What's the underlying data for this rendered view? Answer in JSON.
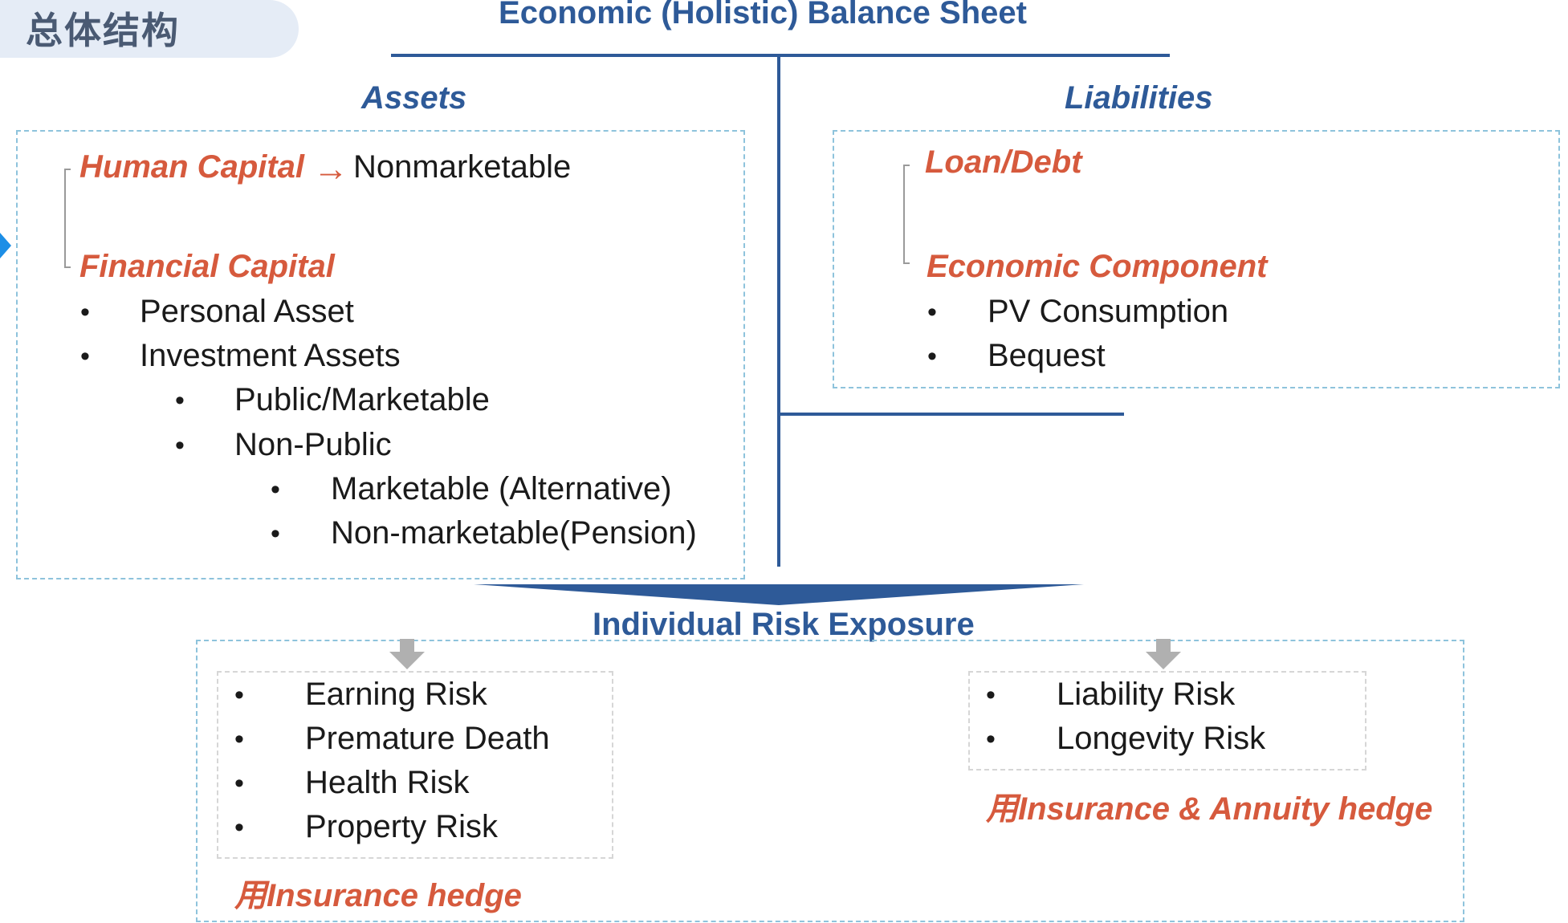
{
  "badge": {
    "text": "总体结构"
  },
  "title": "Economic (Holistic) Balance Sheet",
  "assets": {
    "header": "Assets",
    "human_capital": "Human Capital",
    "arrow": "→",
    "nonmarketable": "Nonmarketable",
    "financial_capital": "Financial Capital",
    "items": [
      {
        "label": "Personal Asset",
        "level": 1
      },
      {
        "label": "Investment Assets",
        "level": 1
      },
      {
        "label": "Public/Marketable",
        "level": 2
      },
      {
        "label": "Non-Public",
        "level": 2
      },
      {
        "label": "Marketable (Alternative)",
        "level": 3
      },
      {
        "label": "Non-marketable(Pension)",
        "level": 3
      }
    ]
  },
  "liabilities": {
    "header": "Liabilities",
    "loan_debt": "Loan/Debt",
    "economic_component": "Economic Component",
    "items": [
      {
        "label": "PV Consumption"
      },
      {
        "label": "Bequest"
      }
    ]
  },
  "risk": {
    "title": "Individual Risk Exposure",
    "left_items": [
      "Earning Risk",
      "Premature Death",
      "Health Risk",
      "Property Risk"
    ],
    "left_hedge": "用Insurance hedge",
    "right_items": [
      "Liability Risk",
      "Longevity Risk"
    ],
    "right_hedge": "用Insurance & Annuity hedge"
  },
  "bullet": "•",
  "colors": {
    "blue": "#2e5a98",
    "red": "#d65a3d",
    "dash": "#8ec3dc"
  }
}
